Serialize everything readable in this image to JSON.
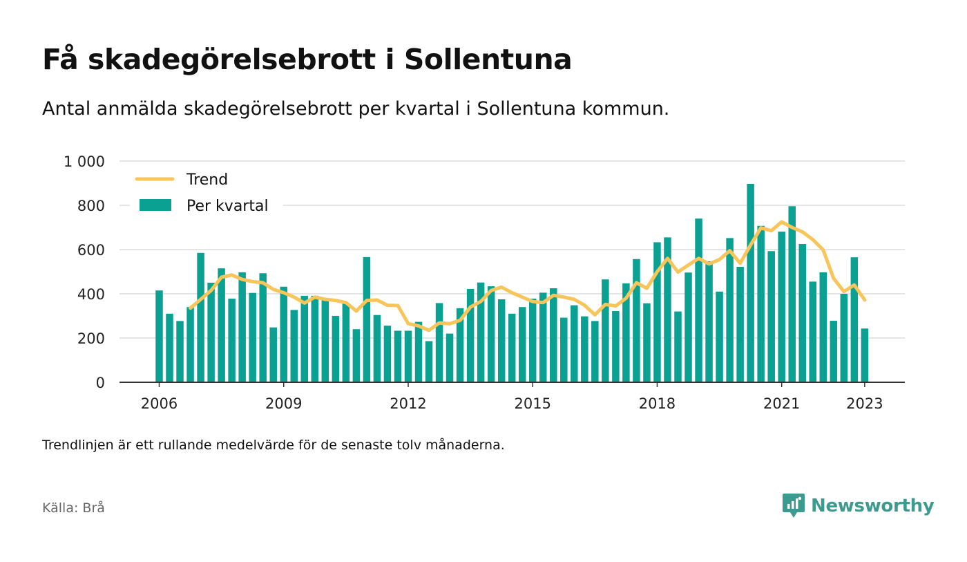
{
  "title": "Få skadegörelsebrott i Sollentuna",
  "subtitle": "Antal anmälda skadegörelsebrott per kvartal i Sollentuna kommun.",
  "note": "Trendlinjen är ett rullande medelvärde för de senaste tolv månaderna.",
  "source": "Källa: Brå",
  "brand": {
    "name": "Newsworthy",
    "icon": "newsworthy-logo-icon"
  },
  "colors": {
    "bars": "#0aa192",
    "trend": "#f7c55a",
    "grid": "#dcdcdc",
    "axis": "#333333",
    "brand": "#3c9a8e"
  },
  "chart_data": {
    "type": "bar",
    "x_start": 2006,
    "quarters_per_year": 4,
    "ylim": [
      0,
      1000
    ],
    "yticks": [
      0,
      200,
      400,
      600,
      800,
      1000
    ],
    "ytick_labels": [
      "0",
      "200",
      "400",
      "600",
      "800",
      "1 000"
    ],
    "xticks": [
      "2006",
      "2009",
      "2012",
      "2015",
      "2018",
      "2021",
      "2023"
    ],
    "legend_position": "top-left",
    "grid": true,
    "series": [
      {
        "name": "Per kvartal",
        "type": "bar",
        "values": [
          415,
          310,
          277,
          340,
          585,
          450,
          515,
          378,
          497,
          404,
          493,
          248,
          432,
          327,
          391,
          391,
          375,
          300,
          355,
          240,
          566,
          304,
          256,
          233,
          233,
          273,
          186,
          358,
          220,
          335,
          422,
          451,
          434,
          375,
          310,
          340,
          378,
          405,
          425,
          292,
          348,
          298,
          277,
          465,
          322,
          447,
          557,
          357,
          633,
          655,
          320,
          496,
          740,
          547,
          410,
          652,
          522,
          897,
          707,
          593,
          681,
          796,
          625,
          455,
          497,
          278,
          400,
          565,
          243
        ]
      },
      {
        "name": "Trend",
        "type": "line",
        "start_index": 3,
        "values": [
          335,
          375,
          415,
          475,
          485,
          465,
          455,
          450,
          420,
          405,
          385,
          358,
          385,
          375,
          370,
          360,
          322,
          370,
          372,
          348,
          347,
          265,
          255,
          235,
          268,
          265,
          280,
          340,
          365,
          415,
          430,
          405,
          385,
          365,
          360,
          393,
          385,
          375,
          348,
          305,
          352,
          345,
          380,
          450,
          425,
          500,
          560,
          498,
          530,
          560,
          535,
          555,
          595,
          538,
          620,
          698,
          685,
          725,
          700,
          680,
          645,
          598,
          470,
          410,
          440,
          372
        ]
      }
    ]
  }
}
